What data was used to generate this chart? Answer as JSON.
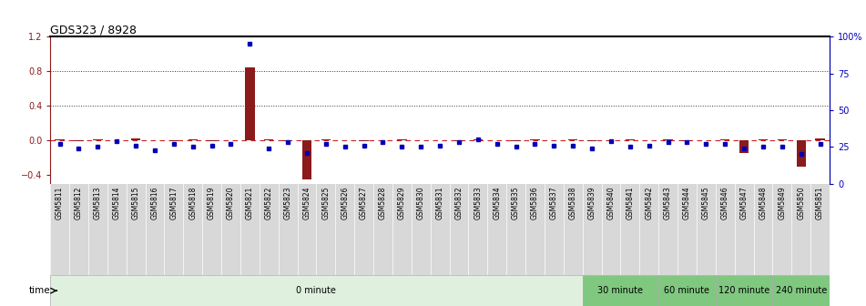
{
  "title": "GDS323 / 8928",
  "samples": [
    "GSM5811",
    "GSM5812",
    "GSM5813",
    "GSM5814",
    "GSM5815",
    "GSM5816",
    "GSM5817",
    "GSM5818",
    "GSM5819",
    "GSM5820",
    "GSM5821",
    "GSM5822",
    "GSM5823",
    "GSM5824",
    "GSM5825",
    "GSM5826",
    "GSM5827",
    "GSM5828",
    "GSM5829",
    "GSM5830",
    "GSM5831",
    "GSM5832",
    "GSM5833",
    "GSM5834",
    "GSM5835",
    "GSM5836",
    "GSM5837",
    "GSM5838",
    "GSM5839",
    "GSM5840",
    "GSM5841",
    "GSM5842",
    "GSM5843",
    "GSM5844",
    "GSM5845",
    "GSM5846",
    "GSM5847",
    "GSM5848",
    "GSM5849",
    "GSM5850",
    "GSM5851"
  ],
  "log_ratio": [
    0.01,
    -0.01,
    0.01,
    0.0,
    0.02,
    0.0,
    -0.01,
    0.01,
    -0.01,
    0.0,
    0.85,
    0.01,
    -0.01,
    -0.45,
    0.01,
    0.0,
    -0.01,
    0.0,
    0.01,
    0.0,
    0.0,
    -0.01,
    0.01,
    0.0,
    -0.01,
    0.01,
    0.0,
    0.01,
    -0.01,
    0.0,
    0.01,
    0.0,
    0.01,
    -0.01,
    0.0,
    0.01,
    -0.15,
    0.01,
    0.01,
    -0.3,
    0.02
  ],
  "percentile_rank": [
    27,
    24,
    25,
    29,
    26,
    23,
    27,
    25,
    26,
    27,
    95,
    24,
    28,
    21,
    27,
    25,
    26,
    28,
    25,
    25,
    26,
    28,
    30,
    27,
    25,
    27,
    26,
    26,
    24,
    29,
    25,
    26,
    28,
    28,
    27,
    27,
    24,
    25,
    25,
    20,
    27
  ],
  "time_groups": [
    {
      "label": "0 minute",
      "start": 0,
      "end": 28,
      "color": "#dff0df"
    },
    {
      "label": "30 minute",
      "start": 28,
      "end": 32,
      "color": "#80c880"
    },
    {
      "label": "60 minute",
      "start": 32,
      "end": 35,
      "color": "#80c880"
    },
    {
      "label": "120 minute",
      "start": 35,
      "end": 38,
      "color": "#80c880"
    },
    {
      "label": "240 minute",
      "start": 38,
      "end": 41,
      "color": "#80c880"
    }
  ],
  "ylim_left": [
    -0.5,
    1.2
  ],
  "ylim_right": [
    0,
    100
  ],
  "yticks_left": [
    -0.4,
    0.0,
    0.4,
    0.8,
    1.2
  ],
  "yticks_right": [
    0,
    25,
    50,
    75,
    100
  ],
  "ytick_labels_right": [
    "0",
    "25",
    "50",
    "75",
    "100%"
  ],
  "log_ratio_color": "#8b1a1a",
  "percentile_color": "#0000bb",
  "dashed_line_color": "#cc2222",
  "dotted_line_color": "#333333",
  "sample_label_bg": "#d8d8d8",
  "legend_log_color": "#cc2222",
  "legend_pct_color": "#0000cc"
}
